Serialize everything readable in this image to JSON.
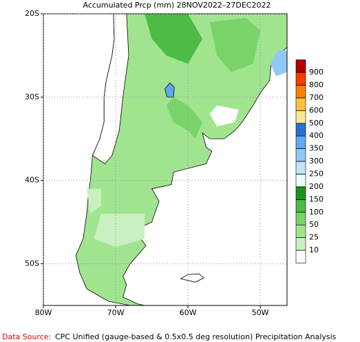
{
  "chart_data": {
    "type": "map",
    "title": "Accumulated Prcp (mm) 28NOV2022–27DEC2022",
    "lat_ticks": [
      {
        "value": -20,
        "label": "20S"
      },
      {
        "value": -30,
        "label": "30S"
      },
      {
        "value": -40,
        "label": "40S"
      },
      {
        "value": -50,
        "label": "50S"
      }
    ],
    "lon_ticks": [
      {
        "value": -80,
        "label": "80W"
      },
      {
        "value": -70,
        "label": "70W"
      },
      {
        "value": -60,
        "label": "60W"
      },
      {
        "value": -50,
        "label": "50W"
      }
    ],
    "xlim": [
      -80,
      -46.3
    ],
    "ylim": [
      -55,
      -20
    ],
    "colorbar": {
      "levels": [
        10,
        25,
        50,
        100,
        150,
        200,
        250,
        300,
        350,
        400,
        500,
        600,
        700,
        800,
        900
      ],
      "colors": [
        "#ffffff",
        "#c8f0c0",
        "#a0e490",
        "#78d468",
        "#4cbc44",
        "#149614",
        "#e8fff8",
        "#c0e4ff",
        "#90c8f8",
        "#60a8f0",
        "#2870d8",
        "#ffe890",
        "#ffc040",
        "#ff8000",
        "#ff3c00",
        "#b40000"
      ]
    },
    "footer": {
      "label": "Data Source:",
      "text": "CPC Unified (gauge-based & 0.5x0.5 deg resolution) Precipitation Analysis"
    }
  }
}
